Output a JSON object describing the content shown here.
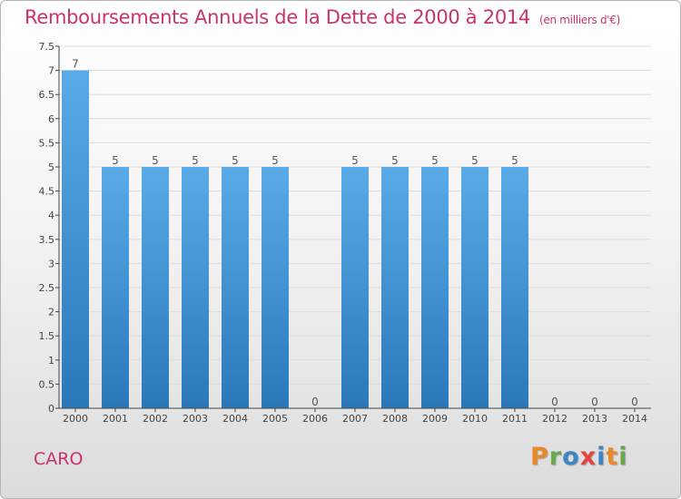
{
  "chart_title": "Remboursements Annuels de la Dette de 2000 à 2014",
  "chart_unit": "(en milliers d'€)",
  "city": "CARO",
  "logo_text": "Proxiti",
  "logo_colors": [
    "#e8882a",
    "#6aa84f",
    "#3d85c6",
    "#e0463d",
    "#3d85c6",
    "#e8882a",
    "#6aa84f"
  ],
  "colors": {
    "bar_top": "#5aaae8",
    "bar_bottom": "#2a78b8",
    "title": "#c8336d",
    "grid": "#dddddd"
  },
  "chart_data": {
    "type": "bar",
    "title": "Remboursements Annuels de la Dette de 2000 à 2014",
    "xlabel": "",
    "ylabel": "",
    "categories": [
      "2000",
      "2001",
      "2002",
      "2003",
      "2004",
      "2005",
      "2006",
      "2007",
      "2008",
      "2009",
      "2010",
      "2011",
      "2012",
      "2013",
      "2014"
    ],
    "values": [
      7,
      5,
      5,
      5,
      5,
      5,
      0,
      5,
      5,
      5,
      5,
      5,
      0,
      0,
      0
    ],
    "data_labels": [
      "7",
      "5",
      "5",
      "5",
      "5",
      "5",
      "0",
      "5",
      "5",
      "5",
      "5",
      "5",
      "0",
      "0",
      "0"
    ],
    "ylim": [
      0,
      7.5
    ],
    "yticks": [
      0,
      0.5,
      1,
      1.5,
      2,
      2.5,
      3,
      3.5,
      4,
      4.5,
      5,
      5.5,
      6,
      6.5,
      7,
      7.5
    ],
    "ytick_labels": [
      "0",
      "0.5",
      "1",
      "1.5",
      "2",
      "2.5",
      "3",
      "3.5",
      "4",
      "4.5",
      "5",
      "5.5",
      "6",
      "6.5",
      "7",
      "7.5"
    ],
    "grid": true,
    "grid_axis": "y"
  }
}
